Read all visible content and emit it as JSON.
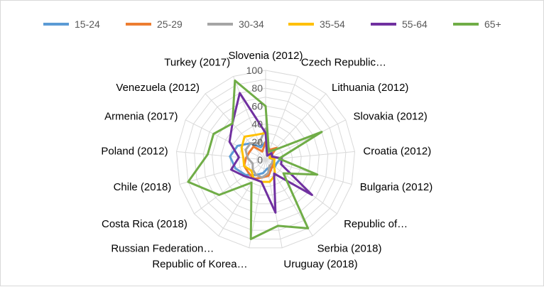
{
  "chart_data": {
    "type": "radar",
    "categories": [
      "Slovenia (2012)",
      "Czech Republic…",
      "Lithuania (2012)",
      "Slovakia (2012)",
      "Croatia (2012)",
      "Bulgaria (2012)",
      "Republic of…",
      "Serbia (2018)",
      "Uruguay (2018)",
      "Republic of Korea…",
      "Russian Federation…",
      "Costa Rica (2018)",
      "Chile (2018)",
      "Poland (2012)",
      "Armenia (2017)",
      "Venezuela (2012)",
      "Turkey (2017)"
    ],
    "rlim": [
      0,
      100
    ],
    "ticks": [
      "0",
      "20",
      "40",
      "60",
      "80",
      "100"
    ],
    "tick_values": [
      0,
      20,
      40,
      60,
      80,
      100
    ],
    "grid": true,
    "legend_position": "top",
    "series": [
      {
        "name": "15-24",
        "color": "#5B9BD5",
        "values": [
          20,
          5,
          12,
          8,
          17,
          13,
          13,
          10,
          10,
          15,
          20,
          28,
          35,
          40,
          35,
          25,
          15
        ]
      },
      {
        "name": "25-29",
        "color": "#ED7D31",
        "values": [
          20,
          12,
          18,
          5,
          8,
          10,
          10,
          12,
          18,
          20,
          25,
          24,
          25,
          22,
          20,
          20,
          10
        ]
      },
      {
        "name": "30-34",
        "color": "#A5A5A5",
        "values": [
          35,
          5,
          10,
          5,
          8,
          8,
          8,
          8,
          15,
          20,
          20,
          18,
          15,
          20,
          25,
          25,
          20
        ]
      },
      {
        "name": "35-54",
        "color": "#FFC000",
        "values": [
          30,
          8,
          8,
          5,
          10,
          10,
          12,
          20,
          25,
          25,
          25,
          20,
          25,
          25,
          30,
          35,
          30
        ]
      },
      {
        "name": "55-64",
        "color": "#7030A0",
        "values": [
          30,
          5,
          10,
          8,
          18,
          18,
          65,
          18,
          60,
          25,
          25,
          30,
          40,
          30,
          45,
          55,
          80
        ]
      },
      {
        "name": "65+",
        "color": "#70AD47",
        "values": [
          60,
          10,
          15,
          70,
          15,
          60,
          25,
          90,
          75,
          90,
          30,
          65,
          90,
          65,
          65,
          55,
          95
        ]
      }
    ]
  }
}
